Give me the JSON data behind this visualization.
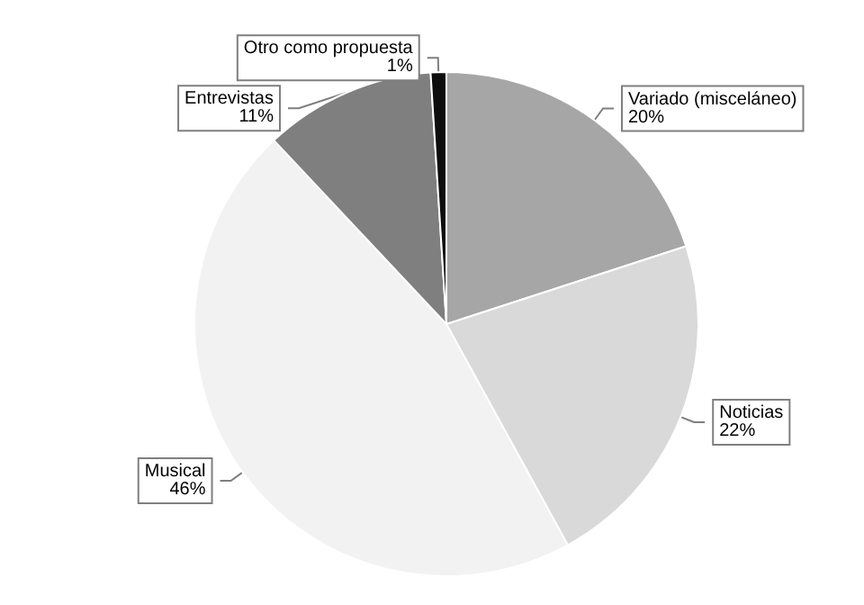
{
  "chart_data": {
    "type": "pie",
    "categories": [
      "Variado (misceláneo)",
      "Noticias",
      "Musical",
      "Entrevistas",
      "Otro como propuesta"
    ],
    "values": [
      20,
      22,
      46,
      11,
      1
    ],
    "colors": [
      "#a6a6a6",
      "#d9d9d9",
      "#f2f2f2",
      "#7f7f7f",
      "#0d0d0d"
    ],
    "value_labels": [
      "20%",
      "22%",
      "46%",
      "11%",
      "1%"
    ],
    "legend": false
  }
}
